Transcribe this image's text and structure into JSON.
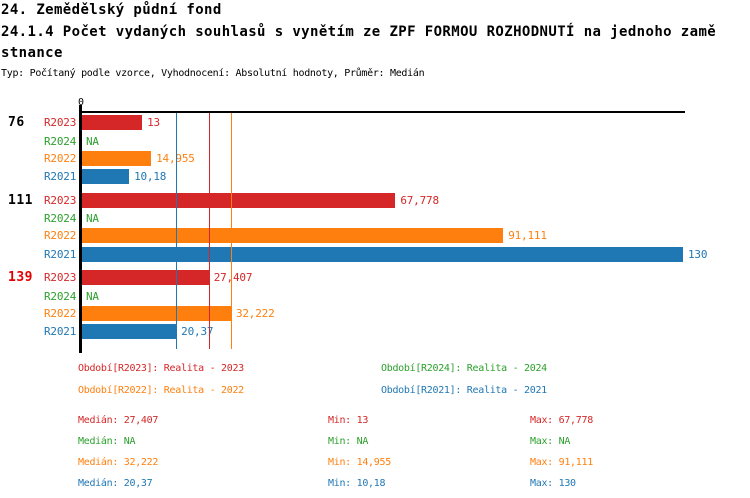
{
  "header": {
    "title_line1": "24. Zemědělský půdní fond",
    "title_line2": "24.1.4 Počet vydaných souhlasů s vynětím ze ZPF FORMOU ROZHODNUTÍ na jednoho zamě",
    "title_line3": "stnance",
    "subtitle": "Typ: Počítaný podle vzorce, Vyhodnocení: Absolutní hodnoty, Průměr: Medián"
  },
  "colors": {
    "r2023": "#d62728",
    "r2024": "#2ca02c",
    "r2022": "#ff7f0e",
    "r2021": "#1f77b4",
    "highlight_group_label": "#e60000",
    "normal_group_label": "#000000",
    "axis": "#000000"
  },
  "chart_data": {
    "type": "bar",
    "orientation": "horizontal",
    "x_zero_label": "0",
    "axis_range": [
      0,
      130
    ],
    "grid": false,
    "series_order": [
      "R2023",
      "R2024",
      "R2022",
      "R2021"
    ],
    "groups": [
      {
        "label": "76",
        "highlight": false,
        "bars": [
          {
            "series": "R2023",
            "value": 13,
            "display": "13"
          },
          {
            "series": "R2024",
            "value": null,
            "display": "NA"
          },
          {
            "series": "R2022",
            "value": 14.955,
            "display": "14,955"
          },
          {
            "series": "R2021",
            "value": 10.18,
            "display": "10,18"
          }
        ]
      },
      {
        "label": "111",
        "highlight": false,
        "bars": [
          {
            "series": "R2023",
            "value": 67.778,
            "display": "67,778"
          },
          {
            "series": "R2024",
            "value": null,
            "display": "NA"
          },
          {
            "series": "R2022",
            "value": 91.111,
            "display": "91,111"
          },
          {
            "series": "R2021",
            "value": 130,
            "display": "130"
          }
        ]
      },
      {
        "label": "139",
        "highlight": true,
        "bars": [
          {
            "series": "R2023",
            "value": 27.407,
            "display": "27,407"
          },
          {
            "series": "R2024",
            "value": null,
            "display": "NA"
          },
          {
            "series": "R2022",
            "value": 32.222,
            "display": "32,222"
          },
          {
            "series": "R2021",
            "value": 20.37,
            "display": "20,37"
          }
        ]
      }
    ],
    "median_lines": [
      {
        "series": "R2021",
        "value": 20.37
      },
      {
        "series": "R2023",
        "value": 27.407
      },
      {
        "series": "R2022",
        "value": 32.222
      }
    ]
  },
  "legend": {
    "items": [
      {
        "series": "R2023",
        "label": "Období[R2023]: Realita - 2023"
      },
      {
        "series": "R2024",
        "label": "Období[R2024]: Realita - 2024"
      },
      {
        "series": "R2022",
        "label": "Období[R2022]: Realita - 2022"
      },
      {
        "series": "R2021",
        "label": "Období[R2021]: Realita - 2021"
      }
    ]
  },
  "stats": {
    "labels": {
      "median": "Medián",
      "min": "Min",
      "max": "Max"
    },
    "rows": [
      {
        "series": "R2023",
        "median": "27,407",
        "min": "13",
        "max": "67,778"
      },
      {
        "series": "R2024",
        "median": "NA",
        "min": "NA",
        "max": "NA"
      },
      {
        "series": "R2022",
        "median": "32,222",
        "min": "14,955",
        "max": "91,111"
      },
      {
        "series": "R2021",
        "median": "20,37",
        "min": "10,18",
        "max": "130"
      }
    ]
  }
}
